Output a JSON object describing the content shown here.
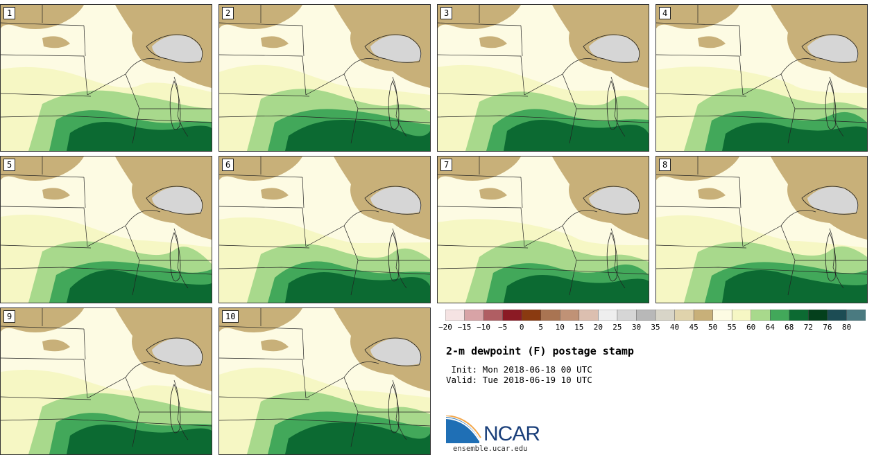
{
  "panels": [
    {
      "label": "1"
    },
    {
      "label": "2"
    },
    {
      "label": "3"
    },
    {
      "label": "4"
    },
    {
      "label": "5"
    },
    {
      "label": "6"
    },
    {
      "label": "7"
    },
    {
      "label": "8"
    },
    {
      "label": "9"
    },
    {
      "label": "10"
    }
  ],
  "colorbar": {
    "ticks": [
      "-20",
      "-15",
      "-10",
      "-5",
      "0",
      "5",
      "10",
      "15",
      "20",
      "25",
      "30",
      "35",
      "40",
      "45",
      "50",
      "55",
      "60",
      "64",
      "68",
      "72",
      "76",
      "80"
    ],
    "colors": [
      "#f5e3e3",
      "#d8a3a6",
      "#b05e63",
      "#8b1a24",
      "#8a3a10",
      "#a97452",
      "#c09276",
      "#dcbfb0",
      "#eeeeee",
      "#d6d6d6",
      "#b8b8b8",
      "#d8d5c8",
      "#e0d3ac",
      "#c8b079",
      "#fdfbe3",
      "#f6f7c4",
      "#a8d98c",
      "#42a85a",
      "#0c6a32",
      "#04401c",
      "#1c4c54",
      "#4a7a80"
    ]
  },
  "title": "2-m dewpoint (F) postage stamp",
  "init": " Init: Mon 2018-06-18 00 UTC",
  "valid": "Valid: Tue 2018-06-19 10 UTC",
  "logo": {
    "name": "NCAR",
    "url": "ensemble.ucar.edu"
  }
}
